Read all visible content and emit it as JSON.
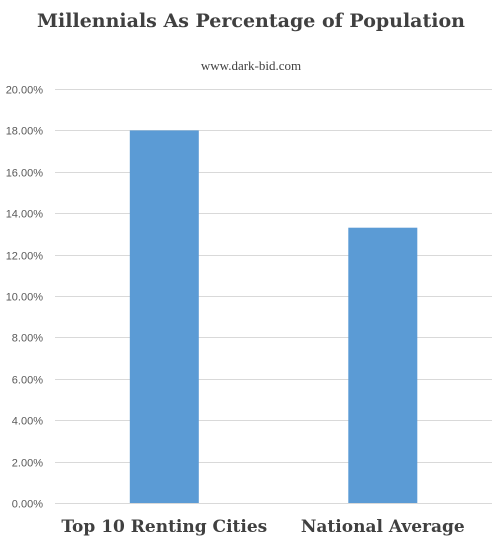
{
  "chart_data": {
    "type": "bar",
    "title": "Millennials As Percentage of Population",
    "subtitle": "www.dark-bid.com",
    "xlabel": "",
    "ylabel": "",
    "categories": [
      "Top 10 Renting Cities",
      "National Average"
    ],
    "values": [
      0.18,
      0.133
    ],
    "ylim": [
      0,
      0.2
    ],
    "y_ticks": [
      0,
      0.02,
      0.04,
      0.06,
      0.08,
      0.1,
      0.12,
      0.14,
      0.16,
      0.18,
      0.2
    ],
    "y_tick_labels": [
      "0.00%",
      "2.00%",
      "4.00%",
      "6.00%",
      "8.00%",
      "10.00%",
      "12.00%",
      "14.00%",
      "16.00%",
      "18.00%",
      "20.00%"
    ],
    "grid": true,
    "legend": "none",
    "bar_color": "#5b9bd5",
    "grid_color": "#d9d9d9"
  }
}
